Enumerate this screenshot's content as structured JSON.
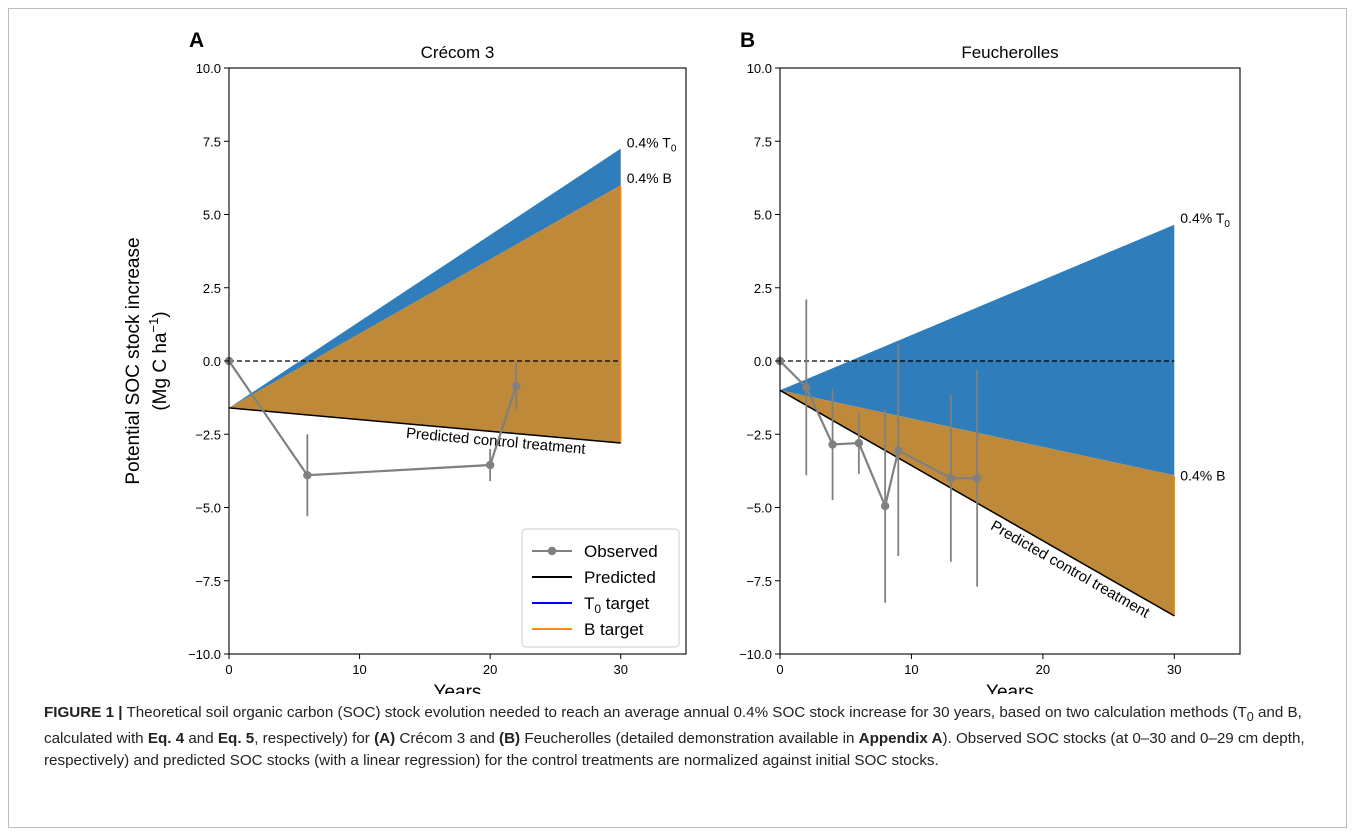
{
  "colors": {
    "t0_fill": "#2f7dba",
    "b_fill": "#bf893a",
    "observed": "#808080",
    "predicted": "#000000",
    "t0_line": "#0000ff",
    "b_line": "#ff8c00"
  },
  "chart_data": [
    {
      "type": "area",
      "panel_label": "A",
      "title": "Crécom 3",
      "xlabel": "Years",
      "ylabel_line1": "Potential SOC stock increase",
      "ylabel_line2": "(Mg C ha",
      "ylabel_sup": "−1",
      "ylabel_close": ")",
      "xlim": [
        0,
        35
      ],
      "ylim": [
        -10,
        10
      ],
      "xticks": [
        "0",
        "10",
        "20",
        "30"
      ],
      "yticks": [
        "10.0",
        "7.5",
        "5.0",
        "2.5",
        "0.0",
        "−2.5",
        "−5.0",
        "−7.5",
        "−10.0"
      ],
      "reference_line_y": 0,
      "predicted_control": {
        "x": [
          0,
          30
        ],
        "y": [
          -1.6,
          -2.8
        ],
        "label": "Predicted control treatment"
      },
      "t0_target": {
        "x": [
          0,
          30
        ],
        "y": [
          -1.6,
          7.25
        ],
        "label_main": "0.4% T",
        "label_sub": "0"
      },
      "b_target": {
        "x": [
          0,
          30
        ],
        "y": [
          -1.6,
          6.0
        ],
        "label": "0.4% B"
      },
      "observed": {
        "x": [
          0,
          6,
          20,
          22
        ],
        "y": [
          0.0,
          -3.9,
          -3.55,
          -0.85
        ],
        "err": [
          0.0,
          1.4,
          0.55,
          0.8
        ]
      },
      "legend": {
        "placement": "lower-right",
        "entries": [
          "Observed",
          "Predicted",
          "T",
          "B target"
        ],
        "t0_sub": "0",
        "t0_suffix": " target"
      }
    },
    {
      "type": "area",
      "panel_label": "B",
      "title": "Feucherolles",
      "xlabel": "Years",
      "xlim": [
        0,
        35
      ],
      "ylim": [
        -10,
        10
      ],
      "xticks": [
        "0",
        "10",
        "20",
        "30"
      ],
      "yticks": [
        "10.0",
        "7.5",
        "5.0",
        "2.5",
        "0.0",
        "−2.5",
        "−5.0",
        "−7.5",
        "−10.0"
      ],
      "reference_line_y": 0,
      "predicted_control": {
        "x": [
          0,
          30
        ],
        "y": [
          -1.0,
          -8.7
        ],
        "label": "Predicted control treatment"
      },
      "t0_target": {
        "x": [
          0,
          30
        ],
        "y": [
          -1.0,
          4.65
        ],
        "label_main": "0.4% T",
        "label_sub": "0"
      },
      "b_target": {
        "x": [
          0,
          30
        ],
        "y": [
          -1.0,
          -3.9
        ],
        "label": "0.4% B"
      },
      "observed": {
        "x": [
          0,
          2,
          4,
          6,
          8,
          9,
          13,
          15
        ],
        "y": [
          0.0,
          -0.9,
          -2.85,
          -2.8,
          -4.95,
          -3.05,
          -4.0,
          -4.0
        ],
        "err": [
          0.0,
          3.0,
          1.9,
          1.05,
          3.3,
          3.6,
          2.85,
          3.7
        ]
      }
    }
  ],
  "caption": {
    "fig_label": "FIGURE 1 |",
    "t1": " Theoretical soil organic carbon (SOC) stock evolution needed to reach an average annual 0.4% SOC stock increase for 30 years, based on two calculation methods (T",
    "t1_sub": "0",
    "t2": " and B, calculated with ",
    "eq4": "Eq. 4",
    "t3": " and ",
    "eq5": "Eq. 5",
    "t4": ", respectively) for ",
    "panel_a": "(A)",
    "t5": " Crécom 3 and ",
    "panel_b": "(B)",
    "t6": " Feucherolles (detailed demonstration available in ",
    "appendix": "Appendix A",
    "t7": "). Observed SOC stocks (at 0–30 and 0–29 cm depth, respectively) and predicted SOC stocks (with a linear regression) for the control treatments are normalized against initial SOC stocks."
  }
}
